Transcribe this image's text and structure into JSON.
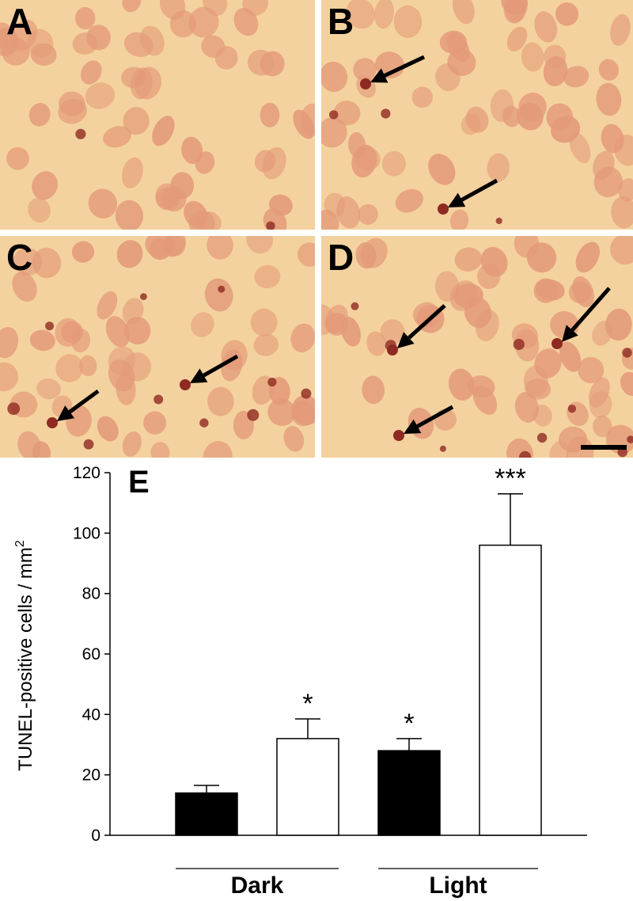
{
  "panels": [
    {
      "letter": "A",
      "arrows": 0
    },
    {
      "letter": "B",
      "arrows": 2
    },
    {
      "letter": "C",
      "arrows": 2
    },
    {
      "letter": "D",
      "arrows": 3
    }
  ],
  "colors": {
    "tissue": "#f6d9a8",
    "nucleus": "#e39a79",
    "apoptotic": "#8e2a22",
    "black_bar": "#000000",
    "white_bar": "#ffffff"
  },
  "chart_data": {
    "type": "bar",
    "panel_label": "E",
    "ylabel": "TUNEL-positive cells / mm",
    "ylabel_superscript": "2",
    "ylim": [
      0,
      120
    ],
    "yticks": [
      0,
      20,
      40,
      60,
      80,
      100,
      120
    ],
    "groups": [
      "Dark",
      "Light"
    ],
    "bars": [
      {
        "group": "Dark",
        "fill": "black",
        "value": 14,
        "error": 2.5,
        "sig": ""
      },
      {
        "group": "Dark",
        "fill": "white",
        "value": 32,
        "error": 6.5,
        "sig": "*"
      },
      {
        "group": "Light",
        "fill": "black",
        "value": 28,
        "error": 4,
        "sig": "*"
      },
      {
        "group": "Light",
        "fill": "white",
        "value": 96,
        "error": 17,
        "sig": "***"
      }
    ],
    "grid": false,
    "legend": "none"
  }
}
